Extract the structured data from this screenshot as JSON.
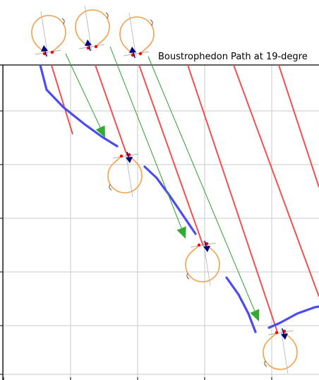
{
  "chart_data": {
    "type": "line",
    "title": "Boustrophedon Path at 19-degre",
    "xlabel": "",
    "ylabel": "",
    "grid": true,
    "colors": {
      "sweep_path": "#f05050",
      "transition_path": "#4b4bf0",
      "connector": "#2ca02c",
      "connector_head": "#33aa33",
      "turning_loop": "#f5a04b",
      "heading_arrow": "#000080",
      "marker": "#ff0000",
      "grid": "#c8c8c8",
      "frame": "#000000"
    },
    "series": [
      {
        "role": "sweep_path",
        "segments": [
          [
            [
              72,
              89
            ],
            [
              103,
              190
            ]
          ],
          [
            [
              134,
              89
            ],
            [
              180,
              220
            ]
          ],
          [
            [
              196,
              89
            ],
            [
              288,
              348
            ]
          ],
          [
            [
              265,
              89
            ],
            [
              393,
              470
            ]
          ],
          [
            [
              330,
              89
            ],
            [
              452,
              420
            ]
          ],
          [
            [
              394,
              89
            ],
            [
              452,
              265
            ]
          ]
        ]
      },
      {
        "role": "transition_path",
        "segments": [
          [
            [
              57,
              92
            ],
            [
              66,
              127
            ],
            [
              90,
              152
            ],
            [
              120,
              176
            ],
            [
              145,
              194
            ],
            [
              166,
              207
            ]
          ],
          [
            [
              205,
              236
            ],
            [
              222,
              252
            ],
            [
              239,
              275
            ],
            [
              256,
              300
            ],
            [
              277,
              331
            ]
          ],
          [
            [
              321,
              393
            ],
            [
              338,
              417
            ],
            [
              352,
              444
            ],
            [
              362,
              470
            ]
          ],
          [
            [
              381,
              464
            ],
            [
              397,
              457
            ],
            [
              421,
              444
            ],
            [
              446,
              435
            ],
            [
              452,
              434
            ]
          ]
        ]
      },
      {
        "role": "connector",
        "segments": [
          [
            [
              93,
              76
            ],
            [
              149,
              195
            ]
          ],
          [
            [
              156,
              66
            ],
            [
              263,
              338
            ]
          ],
          [
            [
              210,
              80
            ],
            [
              367,
              455
            ]
          ]
        ]
      },
      {
        "role": "turning_loop",
        "points": [
          [
            68,
            74,
            180
          ],
          [
            130,
            66,
            180
          ],
          [
            193,
            76,
            180
          ],
          [
            178,
            221,
            0
          ],
          [
            288,
            347,
            0
          ],
          [
            398,
            471,
            0
          ]
        ]
      }
    ]
  }
}
